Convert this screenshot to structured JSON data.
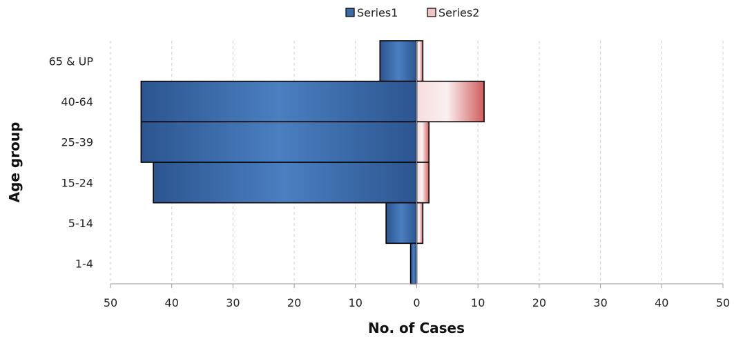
{
  "chart_data": {
    "type": "bar",
    "orientation": "horizontal",
    "layout": "population-pyramid",
    "categories": [
      "65 & UP",
      "40-64",
      "25-39",
      "15-24",
      "5-14",
      "1-4"
    ],
    "series": [
      {
        "name": "Series1",
        "values": [
          6,
          45,
          45,
          43,
          5,
          1
        ],
        "direction": "left",
        "color": "#3a6aa8"
      },
      {
        "name": "Series2",
        "values": [
          1,
          11,
          2,
          2,
          1,
          0
        ],
        "direction": "right",
        "color": "#d97a7a"
      }
    ],
    "xlabel": "No. of Cases",
    "ylabel": "Age group",
    "xlim": [
      -50,
      50
    ],
    "x_ticks": [
      -50,
      -40,
      -30,
      -20,
      -10,
      0,
      10,
      20,
      30,
      40,
      50
    ],
    "x_tick_labels": [
      "50",
      "40",
      "30",
      "20",
      "10",
      "0",
      "10",
      "20",
      "30",
      "40",
      "50"
    ],
    "grid": "vertical dashed",
    "legend_position": "top-center"
  }
}
